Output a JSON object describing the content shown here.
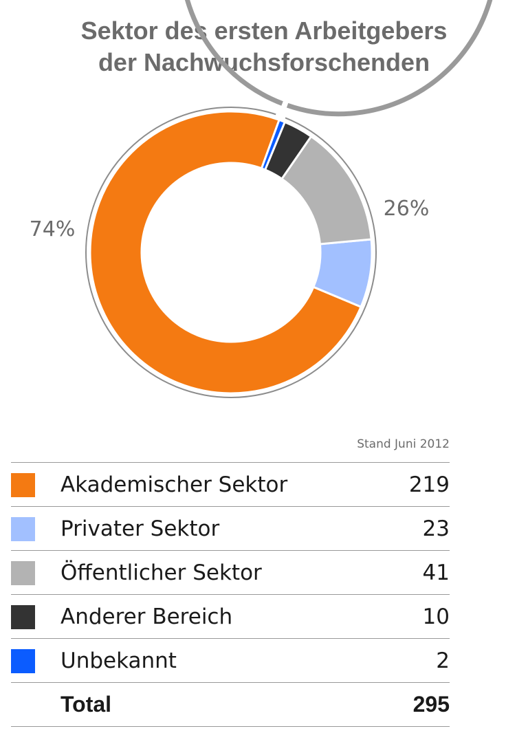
{
  "title": {
    "line1": "Sektor des ersten Arbeitgebers",
    "line2": "der Nachwuchsforschenden"
  },
  "stand": "Stand Juni 2012",
  "colors": {
    "akademisch": "#f47a12",
    "privat": "#a2c0ff",
    "oeffentlich": "#b3b3b3",
    "andere": "#333333",
    "unbekannt": "#0b5cff",
    "outline": "#8c8c8c",
    "bracket": "#9a9a9a",
    "text_gray": "#6b6b6b"
  },
  "chart_data": {
    "type": "pie",
    "style": "donut",
    "labels": [
      "Akademischer Sektor",
      "Privater Sektor",
      "Öffentlicher Sektor",
      "Anderer Bereich",
      "Unbekannt"
    ],
    "values": [
      219,
      23,
      41,
      10,
      2
    ],
    "total": 295,
    "annotations": [
      {
        "text": "74%",
        "refers_to": "Akademischer Sektor"
      },
      {
        "text": "26%",
        "refers_to": "Privater Sektor, Öffentlicher Sektor, Anderer Bereich, Unbekannt"
      }
    ]
  },
  "legend": {
    "rows": [
      {
        "label": "Akademischer Sektor",
        "count": "219"
      },
      {
        "label": "Privater Sektor",
        "count": "23"
      },
      {
        "label": "Öffentlicher Sektor",
        "count": "41"
      },
      {
        "label": "Anderer Bereich",
        "count": "10"
      },
      {
        "label": "Unbekannt",
        "count": "2"
      }
    ],
    "total_label": "Total",
    "total_count": "295"
  }
}
